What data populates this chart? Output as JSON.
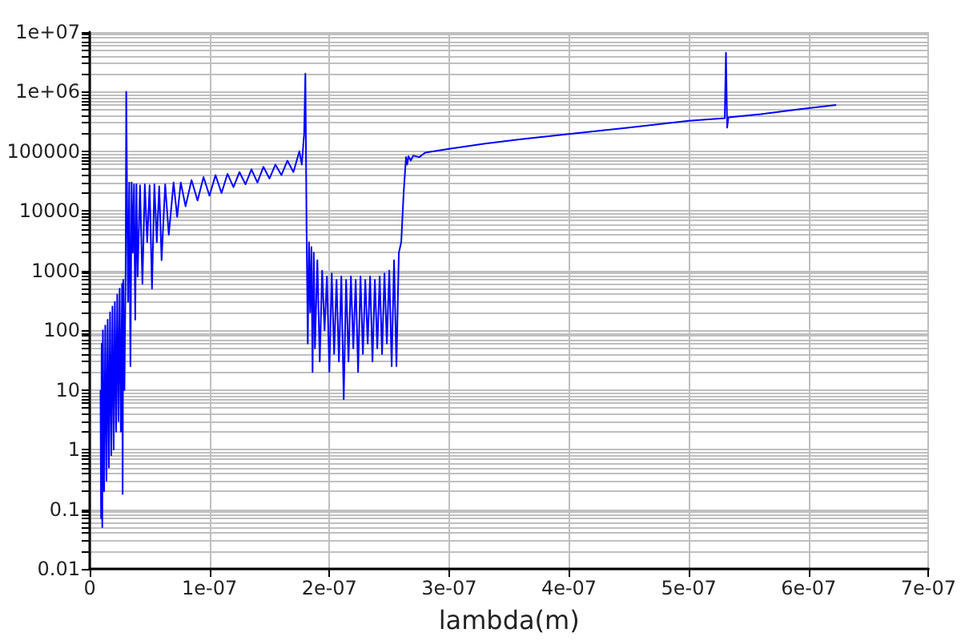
{
  "chart_data": {
    "type": "line",
    "xlabel": "lambda(m)",
    "log": "y",
    "grid": true,
    "marker": "none",
    "line_style": "solid",
    "xlim": [
      0,
      7e-07
    ],
    "xticks": [
      0,
      {
        "value": 1e-07,
        "label": "1e-07"
      },
      {
        "value": 2e-07,
        "label": "2e-07"
      },
      {
        "value": 3e-07,
        "label": "3e-07"
      },
      {
        "value": 4e-07,
        "label": "4e-07"
      },
      {
        "value": 5e-07,
        "label": "5e-07"
      },
      {
        "value": 6e-07,
        "label": "6e-07"
      },
      {
        "value": 7e-07,
        "label": "7e-07"
      }
    ],
    "ylim": [
      0.01,
      10000000
    ],
    "yticks": [
      0.01,
      0.1,
      1,
      10,
      100,
      1000,
      10000,
      100000,
      {
        "value": 1000000,
        "label": "1e+06"
      },
      {
        "value": 10000000,
        "label": "1e+07"
      },
      {
        "value": 0.02,
        "label": null
      },
      {
        "value": 0.03,
        "label": null
      },
      {
        "value": 0.04,
        "label": null
      },
      {
        "value": 0.05,
        "label": null
      },
      {
        "value": 0.06,
        "label": null
      },
      {
        "value": 0.07,
        "label": null
      },
      {
        "value": 0.08,
        "label": null
      },
      {
        "value": 0.09,
        "label": null
      },
      {
        "value": 0.2,
        "label": null
      },
      {
        "value": 0.3,
        "label": null
      },
      {
        "value": 0.4,
        "label": null
      },
      {
        "value": 0.5,
        "label": null
      },
      {
        "value": 0.6,
        "label": null
      },
      {
        "value": 0.7,
        "label": null
      },
      {
        "value": 0.8,
        "label": null
      },
      {
        "value": 0.9,
        "label": null
      },
      {
        "value": 2,
        "label": null
      },
      {
        "value": 3,
        "label": null
      },
      {
        "value": 4,
        "label": null
      },
      {
        "value": 5,
        "label": null
      },
      {
        "value": 6,
        "label": null
      },
      {
        "value": 7,
        "label": null
      },
      {
        "value": 8,
        "label": null
      },
      {
        "value": 9,
        "label": null
      },
      {
        "value": 20,
        "label": null
      },
      {
        "value": 30,
        "label": null
      },
      {
        "value": 40,
        "label": null
      },
      {
        "value": 50,
        "label": null
      },
      {
        "value": 60,
        "label": null
      },
      {
        "value": 70,
        "label": null
      },
      {
        "value": 80,
        "label": null
      },
      {
        "value": 90,
        "label": null
      },
      {
        "value": 200,
        "label": null
      },
      {
        "value": 300,
        "label": null
      },
      {
        "value": 400,
        "label": null
      },
      {
        "value": 500,
        "label": null
      },
      {
        "value": 600,
        "label": null
      },
      {
        "value": 700,
        "label": null
      },
      {
        "value": 800,
        "label": null
      },
      {
        "value": 900,
        "label": null
      },
      {
        "value": 2000,
        "label": null
      },
      {
        "value": 3000,
        "label": null
      },
      {
        "value": 4000,
        "label": null
      },
      {
        "value": 5000,
        "label": null
      },
      {
        "value": 6000,
        "label": null
      },
      {
        "value": 7000,
        "label": null
      },
      {
        "value": 8000,
        "label": null
      },
      {
        "value": 9000,
        "label": null
      },
      {
        "value": 20000,
        "label": null
      },
      {
        "value": 30000,
        "label": null
      },
      {
        "value": 40000,
        "label": null
      },
      {
        "value": 50000,
        "label": null
      },
      {
        "value": 60000,
        "label": null
      },
      {
        "value": 70000,
        "label": null
      },
      {
        "value": 80000,
        "label": null
      },
      {
        "value": 90000,
        "label": null
      },
      {
        "value": 200000,
        "label": null
      },
      {
        "value": 300000,
        "label": null
      },
      {
        "value": 400000,
        "label": null
      },
      {
        "value": 500000,
        "label": null
      },
      {
        "value": 600000,
        "label": null
      },
      {
        "value": 700000,
        "label": null
      },
      {
        "value": 800000,
        "label": null
      },
      {
        "value": 900000,
        "label": null
      },
      {
        "value": 2000000,
        "label": null
      },
      {
        "value": 3000000,
        "label": null
      },
      {
        "value": 4000000,
        "label": null
      },
      {
        "value": 5000000,
        "label": null
      },
      {
        "value": 6000000,
        "label": null
      },
      {
        "value": 7000000,
        "label": null
      },
      {
        "value": 8000000,
        "label": null
      },
      {
        "value": 9000000,
        "label": null
      }
    ],
    "series": [
      {
        "color": "#0000ff",
        "x": [
          9e-09,
          9.5e-09,
          1e-08,
          1.05e-08,
          1.1e-08,
          1.2e-08,
          1.3e-08,
          1.4e-08,
          1.5e-08,
          1.6e-08,
          1.7e-08,
          1.8e-08,
          1.9e-08,
          2e-08,
          2.1e-08,
          2.2e-08,
          2.3e-08,
          2.4e-08,
          2.5e-08,
          2.6e-08,
          2.7e-08,
          2.75e-08,
          2.8e-08,
          2.9e-08,
          3e-08,
          3.05e-08,
          3.1e-08,
          3.2e-08,
          3.3e-08,
          3.4e-08,
          3.5e-08,
          3.6e-08,
          3.7e-08,
          3.8e-08,
          3.9e-08,
          4e-08,
          4.2e-08,
          4.4e-08,
          4.6e-08,
          4.8e-08,
          5e-08,
          5.2e-08,
          5.4e-08,
          5.6e-08,
          5.8e-08,
          6e-08,
          6.3e-08,
          6.6e-08,
          7e-08,
          7.3e-08,
          7.6e-08,
          8e-08,
          8.5e-08,
          9e-08,
          9.5e-08,
          1e-07,
          1.05e-07,
          1.1e-07,
          1.15e-07,
          1.2e-07,
          1.25e-07,
          1.3e-07,
          1.35e-07,
          1.4e-07,
          1.45e-07,
          1.5e-07,
          1.55e-07,
          1.6e-07,
          1.65e-07,
          1.7e-07,
          1.75e-07,
          1.77e-07,
          1.79e-07,
          1.8e-07,
          1.81e-07,
          1.82e-07,
          1.83e-07,
          1.84e-07,
          1.85e-07,
          1.86e-07,
          1.87e-07,
          1.88e-07,
          1.9e-07,
          1.92e-07,
          1.94e-07,
          1.96e-07,
          1.98e-07,
          2e-07,
          2.02e-07,
          2.04e-07,
          2.06e-07,
          2.08e-07,
          2.1e-07,
          2.12e-07,
          2.14e-07,
          2.16e-07,
          2.18e-07,
          2.2e-07,
          2.22e-07,
          2.24e-07,
          2.26e-07,
          2.28e-07,
          2.3e-07,
          2.32e-07,
          2.34e-07,
          2.36e-07,
          2.38e-07,
          2.4e-07,
          2.42e-07,
          2.44e-07,
          2.46e-07,
          2.48e-07,
          2.5e-07,
          2.52e-07,
          2.54e-07,
          2.56e-07,
          2.58e-07,
          2.6e-07,
          2.62e-07,
          2.64e-07,
          2.65e-07,
          2.66e-07,
          2.68e-07,
          2.7e-07,
          2.75e-07,
          2.8e-07,
          3e-07,
          3.3e-07,
          3.6e-07,
          4e-07,
          4.5e-07,
          5e-07,
          5.3e-07,
          5.31e-07,
          5.32e-07,
          5.33e-07,
          5.6e-07,
          5.9e-07,
          6.23e-07
        ],
        "values": [
          10,
          0.07,
          60,
          0.05,
          100,
          0.2,
          120,
          0.3,
          150,
          0.5,
          200,
          0.8,
          250,
          1,
          300,
          2,
          400,
          3,
          500,
          2,
          600,
          0.18,
          700,
          10,
          1000,
          1000000,
          50000,
          300,
          30000,
          25,
          30000,
          2000,
          28000,
          150,
          28000,
          800,
          27000,
          600,
          28000,
          3000,
          27000,
          500,
          28000,
          3000,
          26000,
          1500,
          28000,
          4000,
          30000,
          8000,
          30000,
          12000,
          33000,
          15000,
          37000,
          18000,
          40000,
          20000,
          42000,
          25000,
          45000,
          28000,
          50000,
          30000,
          55000,
          35000,
          60000,
          40000,
          70000,
          45000,
          100000,
          60000,
          200000,
          2000000,
          5000,
          60,
          3000,
          200,
          2500,
          20,
          2000,
          50,
          1500,
          30,
          1000,
          100,
          800,
          20,
          900,
          40,
          700,
          30,
          800,
          7,
          700,
          30,
          800,
          50,
          700,
          20,
          800,
          40,
          700,
          60,
          800,
          30,
          700,
          50,
          800,
          40,
          900,
          60,
          1000,
          25,
          1500,
          25,
          2000,
          3000,
          20000,
          80000,
          60000,
          83000,
          70000,
          85000,
          80000,
          95000,
          110000,
          135000,
          160000,
          195000,
          250000,
          325000,
          360000,
          4500000,
          250000,
          370000,
          420000,
          500000,
          600000
        ]
      }
    ]
  }
}
